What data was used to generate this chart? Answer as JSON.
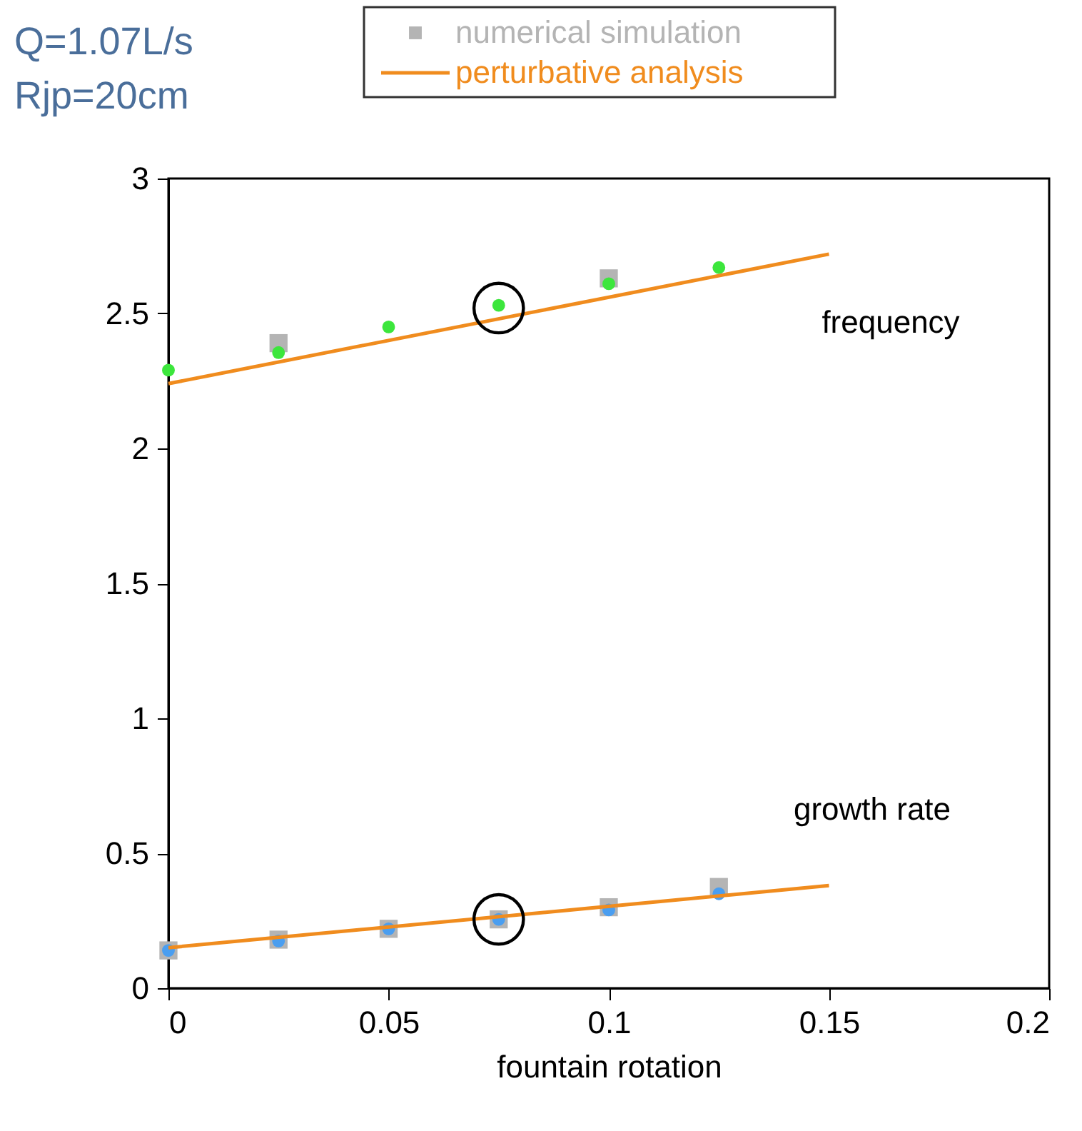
{
  "chart_data": {
    "type": "scatter",
    "annotations": [
      "Q=1.07L/s",
      "Rjp=20cm",
      "frequency",
      "growth rate"
    ],
    "xlabel": "fountain rotation",
    "xlim": [
      0,
      0.2
    ],
    "xticks": [
      0,
      0.05,
      0.1,
      0.15,
      0.2
    ],
    "ylim": [
      0,
      3
    ],
    "yticks": [
      0,
      0.5,
      1,
      1.5,
      2,
      2.5,
      3
    ],
    "grid": false,
    "legend": "top",
    "series": [
      {
        "name": "numerical simulation",
        "marker": "square",
        "color": "#b4b4b4",
        "x": [
          0.025,
          0.1,
          0,
          0.025,
          0.05,
          0.075,
          0.1,
          0.125
        ],
        "values": [
          2.39,
          2.63,
          0.14,
          0.18,
          0.22,
          0.255,
          0.3,
          0.375
        ]
      },
      {
        "marker": "circle",
        "color": "#3ce63c",
        "x": [
          0,
          0.025,
          0.05,
          0.075,
          0.1,
          0.125
        ],
        "values": [
          2.29,
          2.355,
          2.45,
          2.53,
          2.61,
          2.67
        ]
      },
      {
        "marker": "circle",
        "color": "#4a9ef0",
        "x": [
          0,
          0.025,
          0.05,
          0.075,
          0.1,
          0.125
        ],
        "values": [
          0.14,
          0.175,
          0.22,
          0.255,
          0.29,
          0.35
        ]
      },
      {
        "name": "perturbative analysis",
        "type": "line",
        "line_style": "solid",
        "color": "#f08c1e",
        "x": [
          0,
          0.15
        ],
        "values": [
          2.24,
          2.72
        ]
      },
      {
        "type": "line",
        "line_style": "solid",
        "color": "#f08c1e",
        "x": [
          0,
          0.15
        ],
        "values": [
          0.15,
          0.38
        ]
      },
      {
        "type": "bubble",
        "color": "#000000",
        "x": [
          0.075,
          0.075
        ],
        "values": [
          2.52,
          0.255
        ],
        "sizes": [
          1,
          1
        ]
      }
    ]
  }
}
